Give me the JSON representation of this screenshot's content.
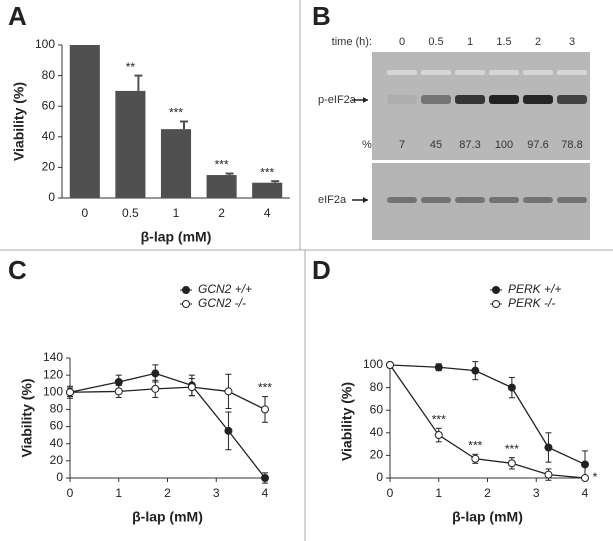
{
  "chart_data": [
    {
      "type": "bar",
      "panel_label": "A",
      "ylabel": "Viability (%)",
      "xlabel": "β-lap (mM)",
      "categories": [
        "0",
        "0.5",
        "1",
        "2",
        "4"
      ],
      "values": [
        100,
        70,
        45,
        15,
        10
      ],
      "errors": [
        0,
        10,
        5,
        1,
        1
      ],
      "labels": [
        null,
        "**",
        "***",
        "***",
        "***"
      ],
      "color": "#505050",
      "ylim": [
        0,
        100
      ],
      "yticks": [
        0,
        20,
        40,
        60,
        80,
        100
      ]
    },
    {
      "type": "line",
      "panel_label": "C",
      "ylabel": "Viability (%)",
      "xlabel": "β-lap (mM)",
      "x": [
        0,
        1,
        1.75,
        2.5,
        3.25,
        4
      ],
      "xlim": [
        0,
        4
      ],
      "xticks": [
        0,
        1,
        2,
        3,
        4
      ],
      "ylim": [
        0,
        140
      ],
      "yticks": [
        0,
        20,
        40,
        60,
        80,
        100,
        120,
        140
      ],
      "series": [
        {
          "name": "GCN2 +/+",
          "color": "#222222",
          "filled": true,
          "values": [
            100,
            112,
            122,
            108,
            55,
            0
          ],
          "errors": [
            7,
            8,
            10,
            12,
            22,
            6
          ]
        },
        {
          "name": "GCN2 -/-",
          "color": "#222222",
          "filled": false,
          "values": [
            100,
            101,
            104,
            106,
            101,
            80
          ],
          "errors": [
            5,
            7,
            10,
            10,
            20,
            15
          ],
          "labels": [
            null,
            null,
            null,
            null,
            null,
            "***"
          ]
        }
      ]
    },
    {
      "type": "line",
      "panel_label": "D",
      "ylabel": "Viability (%)",
      "xlabel": "β-lap (mM)",
      "x": [
        0,
        1,
        1.75,
        2.5,
        3.25,
        4
      ],
      "xlim": [
        0,
        4
      ],
      "xticks": [
        0,
        1,
        2,
        3,
        4
      ],
      "ylim": [
        0,
        100
      ],
      "yticks": [
        0,
        20,
        40,
        60,
        80,
        100
      ],
      "series": [
        {
          "name": "PERK +/+",
          "color": "#222222",
          "filled": true,
          "values": [
            100,
            98,
            95,
            80,
            27,
            12
          ],
          "errors": [
            2,
            3,
            8,
            9,
            13,
            12
          ]
        },
        {
          "name": "PERK -/-",
          "color": "#222222",
          "filled": false,
          "values": [
            100,
            38,
            17,
            13,
            3,
            0
          ],
          "errors": [
            2,
            6,
            4,
            5,
            5,
            1
          ],
          "labels": [
            null,
            "***",
            "***",
            "***",
            null,
            "*"
          ]
        }
      ]
    }
  ],
  "blot": {
    "panel_label": "B",
    "time_label": "time (h):",
    "times": [
      "0",
      "0.5",
      "1",
      "1.5",
      "2",
      "3"
    ],
    "rows": [
      "p-eIF2a",
      "eIF2a"
    ],
    "percent_label": "%",
    "percents": [
      7,
      45,
      87.3,
      100,
      97.6,
      78.8
    ]
  }
}
